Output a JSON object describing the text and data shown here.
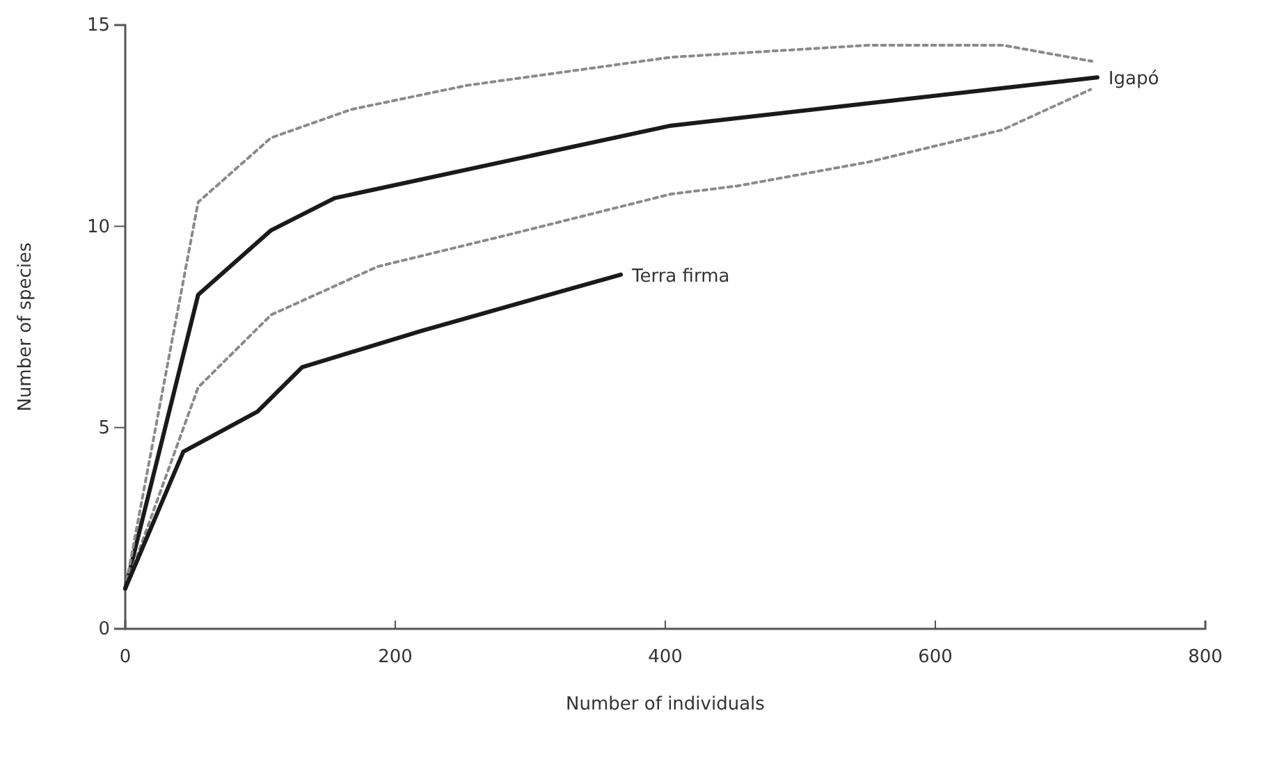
{
  "chart_data": {
    "type": "line",
    "xlabel": "Number of individuals",
    "ylabel": "Number of species",
    "xlim": [
      0,
      800
    ],
    "ylim": [
      0,
      15
    ],
    "xticks": [
      0,
      200,
      400,
      600,
      800
    ],
    "yticks": [
      0,
      5,
      10,
      15
    ],
    "grid": false,
    "marker": "none",
    "series": [
      {
        "name": "Igapó",
        "color": "#1a1a1a",
        "line_style": "solid",
        "x": [
          0,
          54,
          108,
          155,
          404,
          720
        ],
        "values": [
          1,
          8.3,
          9.9,
          10.7,
          12.5,
          13.7
        ]
      },
      {
        "color": "#8a8a8a",
        "line_style": "dotted",
        "x": [
          0,
          54,
          108,
          167,
          253,
          404,
          551,
          650,
          716
        ],
        "values": [
          1,
          10.6,
          12.2,
          12.9,
          13.5,
          14.2,
          14.5,
          14.5,
          14.1
        ]
      },
      {
        "color": "#8a8a8a",
        "line_style": "dotted",
        "x": [
          0,
          54,
          108,
          187,
          285,
          404,
          453,
          551,
          650,
          715
        ],
        "values": [
          1,
          6,
          7.8,
          9,
          9.8,
          10.8,
          11,
          11.6,
          12.4,
          13.4
        ]
      },
      {
        "name": "Terra firma",
        "color": "#1a1a1a",
        "line_style": "solid",
        "x": [
          0,
          43,
          98,
          131,
          219,
          367
        ],
        "values": [
          1,
          4.4,
          5.4,
          6.5,
          7.4,
          8.8
        ]
      }
    ]
  }
}
